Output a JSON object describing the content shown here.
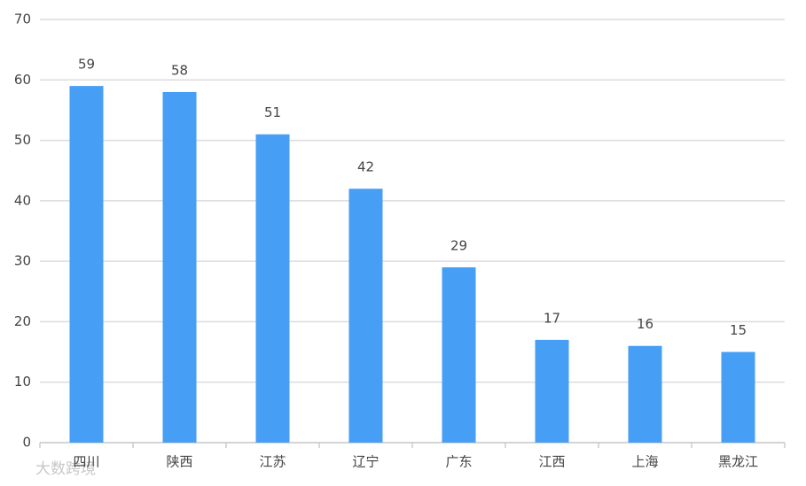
{
  "chart_data": {
    "type": "bar",
    "categories": [
      "四川",
      "陕西",
      "江苏",
      "辽宁",
      "广东",
      "江西",
      "上海",
      "黑龙江"
    ],
    "values": [
      59,
      58,
      51,
      42,
      29,
      17,
      16,
      15
    ],
    "color": "#479ef5",
    "ylim": [
      0,
      70
    ],
    "yticks": [
      0,
      10,
      20,
      30,
      40,
      50,
      60,
      70
    ],
    "grid": true,
    "watermark": "大数跨境"
  }
}
